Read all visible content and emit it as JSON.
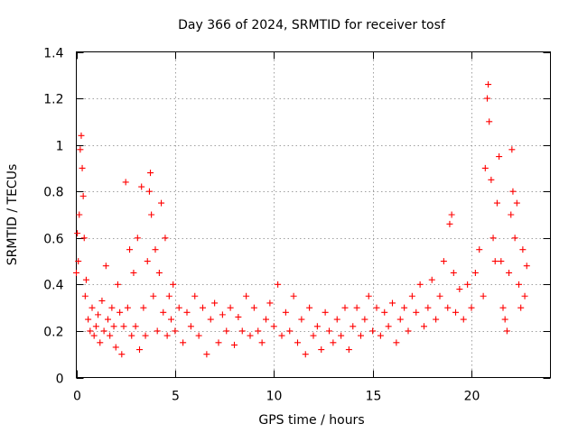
{
  "chart_data": {
    "type": "scatter",
    "title": "Day 366 of 2024, SRMTID for receiver tosf",
    "xlabel": "GPS time / hours",
    "ylabel": "SRMTID / TECUs",
    "xlim": [
      0,
      24
    ],
    "ylim": [
      0,
      1.4
    ],
    "xticks": [
      0,
      5,
      10,
      15,
      20
    ],
    "xtick_labels": [
      "0",
      "5",
      "10",
      "15",
      "20"
    ],
    "yticks": [
      0,
      0.2,
      0.4,
      0.6,
      0.8,
      1.0,
      1.2,
      1.4
    ],
    "ytick_labels": [
      "0",
      "0.2",
      "0.4",
      "0.6",
      "0.8",
      "1",
      "1.2",
      "1.4"
    ],
    "grid": true,
    "marker": "plus",
    "color": "#ff0000",
    "series": [
      {
        "name": "SRMTID",
        "points": [
          [
            0.0,
            0.45
          ],
          [
            0.05,
            0.62
          ],
          [
            0.1,
            0.5
          ],
          [
            0.15,
            0.7
          ],
          [
            0.2,
            0.98
          ],
          [
            0.25,
            1.04
          ],
          [
            0.3,
            0.9
          ],
          [
            0.35,
            0.78
          ],
          [
            0.4,
            0.6
          ],
          [
            0.45,
            0.35
          ],
          [
            0.5,
            0.42
          ],
          [
            0.6,
            0.25
          ],
          [
            0.7,
            0.2
          ],
          [
            0.8,
            0.3
          ],
          [
            0.9,
            0.18
          ],
          [
            1.0,
            0.22
          ],
          [
            1.1,
            0.27
          ],
          [
            1.2,
            0.15
          ],
          [
            1.3,
            0.33
          ],
          [
            1.4,
            0.2
          ],
          [
            1.5,
            0.48
          ],
          [
            1.6,
            0.25
          ],
          [
            1.7,
            0.18
          ],
          [
            1.8,
            0.3
          ],
          [
            1.9,
            0.22
          ],
          [
            2.0,
            0.13
          ],
          [
            2.1,
            0.4
          ],
          [
            2.2,
            0.28
          ],
          [
            2.3,
            0.1
          ],
          [
            2.4,
            0.22
          ],
          [
            2.5,
            0.84
          ],
          [
            2.6,
            0.3
          ],
          [
            2.7,
            0.55
          ],
          [
            2.8,
            0.18
          ],
          [
            2.9,
            0.45
          ],
          [
            3.0,
            0.22
          ],
          [
            3.1,
            0.6
          ],
          [
            3.2,
            0.12
          ],
          [
            3.3,
            0.82
          ],
          [
            3.4,
            0.3
          ],
          [
            3.5,
            0.18
          ],
          [
            3.6,
            0.5
          ],
          [
            3.7,
            0.8
          ],
          [
            3.75,
            0.88
          ],
          [
            3.8,
            0.7
          ],
          [
            3.9,
            0.35
          ],
          [
            4.0,
            0.55
          ],
          [
            4.1,
            0.2
          ],
          [
            4.2,
            0.45
          ],
          [
            4.3,
            0.75
          ],
          [
            4.4,
            0.28
          ],
          [
            4.5,
            0.6
          ],
          [
            4.6,
            0.18
          ],
          [
            4.7,
            0.35
          ],
          [
            4.8,
            0.25
          ],
          [
            4.9,
            0.4
          ],
          [
            5.0,
            0.2
          ],
          [
            5.2,
            0.3
          ],
          [
            5.4,
            0.15
          ],
          [
            5.6,
            0.28
          ],
          [
            5.8,
            0.22
          ],
          [
            6.0,
            0.35
          ],
          [
            6.2,
            0.18
          ],
          [
            6.4,
            0.3
          ],
          [
            6.6,
            0.1
          ],
          [
            6.8,
            0.25
          ],
          [
            7.0,
            0.32
          ],
          [
            7.2,
            0.15
          ],
          [
            7.4,
            0.27
          ],
          [
            7.6,
            0.2
          ],
          [
            7.8,
            0.3
          ],
          [
            8.0,
            0.14
          ],
          [
            8.2,
            0.26
          ],
          [
            8.4,
            0.2
          ],
          [
            8.6,
            0.35
          ],
          [
            8.8,
            0.18
          ],
          [
            9.0,
            0.3
          ],
          [
            9.2,
            0.2
          ],
          [
            9.4,
            0.15
          ],
          [
            9.6,
            0.25
          ],
          [
            9.8,
            0.32
          ],
          [
            10.0,
            0.22
          ],
          [
            10.2,
            0.4
          ],
          [
            10.4,
            0.18
          ],
          [
            10.6,
            0.28
          ],
          [
            10.8,
            0.2
          ],
          [
            11.0,
            0.35
          ],
          [
            11.2,
            0.15
          ],
          [
            11.4,
            0.25
          ],
          [
            11.6,
            0.1
          ],
          [
            11.8,
            0.3
          ],
          [
            12.0,
            0.18
          ],
          [
            12.2,
            0.22
          ],
          [
            12.4,
            0.12
          ],
          [
            12.6,
            0.28
          ],
          [
            12.8,
            0.2
          ],
          [
            13.0,
            0.15
          ],
          [
            13.2,
            0.25
          ],
          [
            13.4,
            0.18
          ],
          [
            13.6,
            0.3
          ],
          [
            13.8,
            0.12
          ],
          [
            14.0,
            0.22
          ],
          [
            14.2,
            0.3
          ],
          [
            14.4,
            0.18
          ],
          [
            14.6,
            0.25
          ],
          [
            14.8,
            0.35
          ],
          [
            15.0,
            0.2
          ],
          [
            15.2,
            0.3
          ],
          [
            15.4,
            0.18
          ],
          [
            15.6,
            0.28
          ],
          [
            15.8,
            0.22
          ],
          [
            16.0,
            0.32
          ],
          [
            16.2,
            0.15
          ],
          [
            16.4,
            0.25
          ],
          [
            16.6,
            0.3
          ],
          [
            16.8,
            0.2
          ],
          [
            17.0,
            0.35
          ],
          [
            17.2,
            0.28
          ],
          [
            17.4,
            0.4
          ],
          [
            17.6,
            0.22
          ],
          [
            17.8,
            0.3
          ],
          [
            18.0,
            0.42
          ],
          [
            18.2,
            0.25
          ],
          [
            18.4,
            0.35
          ],
          [
            18.6,
            0.5
          ],
          [
            18.8,
            0.3
          ],
          [
            18.9,
            0.66
          ],
          [
            19.0,
            0.7
          ],
          [
            19.1,
            0.45
          ],
          [
            19.2,
            0.28
          ],
          [
            19.4,
            0.38
          ],
          [
            19.6,
            0.25
          ],
          [
            19.8,
            0.4
          ],
          [
            20.0,
            0.3
          ],
          [
            20.2,
            0.45
          ],
          [
            20.4,
            0.55
          ],
          [
            20.6,
            0.35
          ],
          [
            20.7,
            0.9
          ],
          [
            20.8,
            1.2
          ],
          [
            20.85,
            1.26
          ],
          [
            20.9,
            1.1
          ],
          [
            21.0,
            0.85
          ],
          [
            21.1,
            0.6
          ],
          [
            21.2,
            0.5
          ],
          [
            21.3,
            0.75
          ],
          [
            21.4,
            0.95
          ],
          [
            21.5,
            0.5
          ],
          [
            21.6,
            0.3
          ],
          [
            21.7,
            0.25
          ],
          [
            21.8,
            0.2
          ],
          [
            21.9,
            0.45
          ],
          [
            22.0,
            0.7
          ],
          [
            22.05,
            0.98
          ],
          [
            22.1,
            0.8
          ],
          [
            22.2,
            0.6
          ],
          [
            22.3,
            0.75
          ],
          [
            22.4,
            0.4
          ],
          [
            22.5,
            0.3
          ],
          [
            22.6,
            0.55
          ],
          [
            22.7,
            0.35
          ],
          [
            22.8,
            0.48
          ]
        ]
      }
    ]
  }
}
